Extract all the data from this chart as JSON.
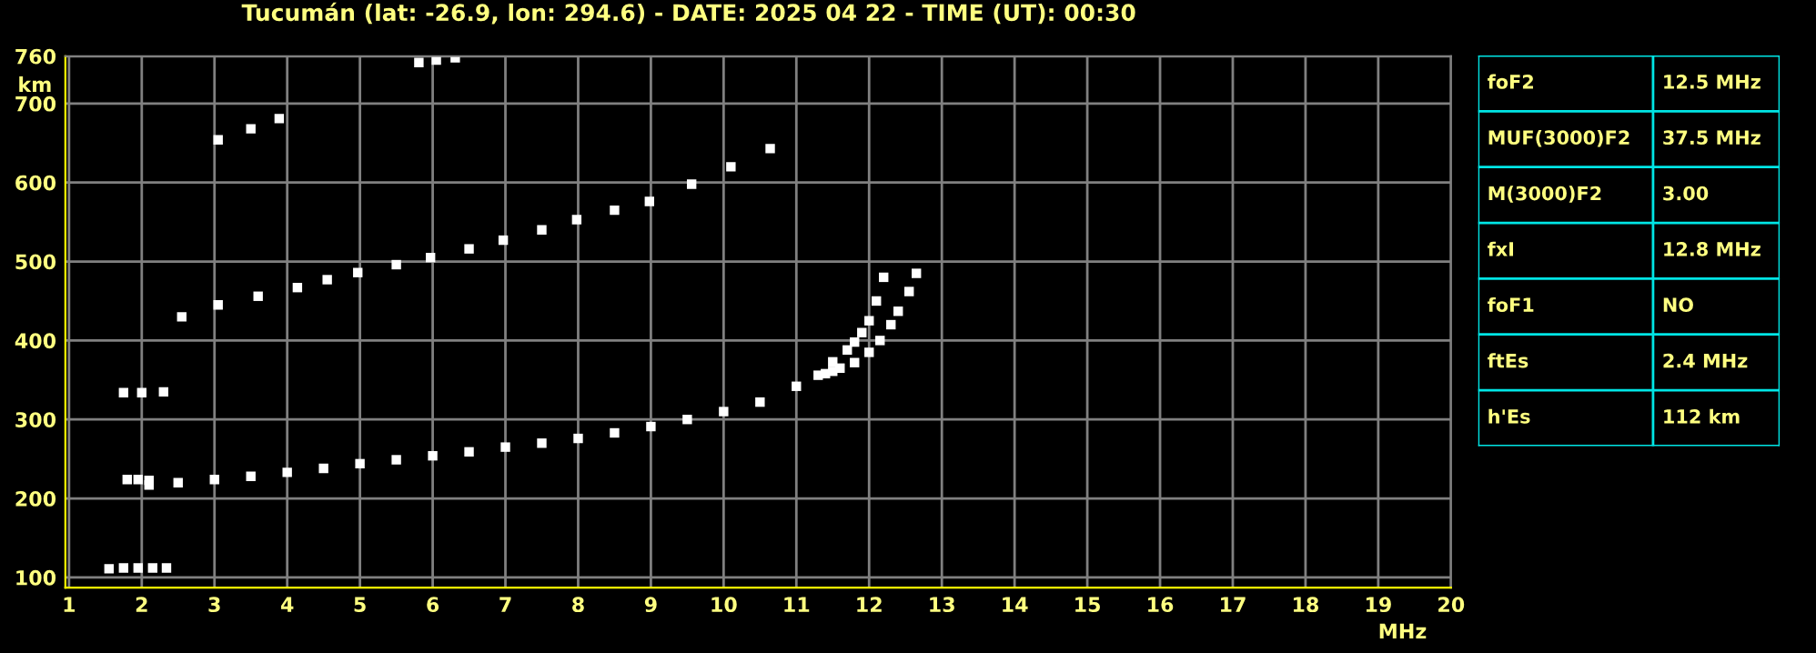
{
  "chart_data": [
    {
      "type": "scatter",
      "title": "Tucumán (lat: -26.9, lon: 294.6) - DATE: 2025 04 22 - TIME (UT): 00:30",
      "xlabel": "MHz",
      "ylabel": "km",
      "marker": "square",
      "grid": true,
      "xlim": [
        0.95,
        20
      ],
      "ylim": [
        87,
        760
      ],
      "xticks": [
        1,
        2,
        3,
        4,
        5,
        6,
        7,
        8,
        9,
        10,
        11,
        12,
        13,
        14,
        15,
        16,
        17,
        18,
        19,
        20
      ],
      "yticks": [
        100,
        200,
        300,
        400,
        500,
        600,
        700,
        760
      ],
      "series": [
        {
          "color": "#ffffff",
          "x": [
            2.1,
            2.5,
            3,
            3.5,
            4,
            4.5,
            5,
            5.5,
            6,
            6.5,
            7,
            7.5,
            8,
            8.5,
            9,
            9.5,
            10,
            10.5,
            11,
            11.3,
            11.5,
            11.7,
            11.8,
            11.9,
            12.0,
            12.1,
            12.2
          ],
          "values": [
            217,
            220,
            224,
            228,
            233,
            238,
            244,
            249,
            254,
            259,
            265,
            270,
            276,
            283,
            291,
            300,
            310,
            322,
            342,
            356,
            373,
            388,
            398,
            410,
            425,
            450,
            480
          ]
        },
        {
          "color": "#ffffff",
          "x": [
            11.4,
            11.5,
            11.6,
            11.8,
            12.0,
            12.15,
            12.3,
            12.4,
            12.55,
            12.65
          ],
          "values": [
            358,
            361,
            365,
            372,
            385,
            400,
            420,
            437,
            462,
            485
          ]
        },
        {
          "color": "#ffffff",
          "x": [
            2.55,
            3.05,
            3.6,
            4.14,
            4.55,
            4.97,
            5.5,
            5.97,
            6.5,
            6.97,
            7.5,
            7.98,
            8.5,
            8.98,
            9.56,
            10.1,
            10.64
          ],
          "values": [
            430,
            445,
            456,
            467,
            477,
            486,
            496,
            505,
            516,
            527,
            540,
            553,
            565,
            576,
            598,
            620,
            643
          ]
        },
        {
          "color": "#ffffff",
          "x": [
            3.05,
            3.5,
            3.89,
            5.81,
            6.05,
            6.31
          ],
          "values": [
            654,
            668,
            681,
            752,
            755,
            758
          ]
        },
        {
          "color": "#ffffff",
          "x": [
            1.55,
            1.75,
            1.95,
            2.15,
            2.34
          ],
          "values": [
            111,
            112,
            112,
            112,
            112
          ]
        },
        {
          "color": "#ffffff",
          "x": [
            1.8,
            1.95,
            2.1
          ],
          "values": [
            224,
            224,
            223
          ]
        },
        {
          "color": "#ffffff",
          "x": [
            1.75,
            2.0,
            2.3
          ],
          "values": [
            334,
            334,
            335
          ]
        }
      ]
    },
    {
      "type": "other",
      "annotations": [
        "foF2",
        "12.5 MHz",
        "MUF(3000)F2",
        "37.5 MHz",
        "M(3000)F2",
        "3.00",
        "fxI",
        "12.8 MHz",
        "foF1",
        "NO",
        "ftEs",
        "2.4 MHz",
        "h'Es",
        "112 km"
      ]
    }
  ]
}
